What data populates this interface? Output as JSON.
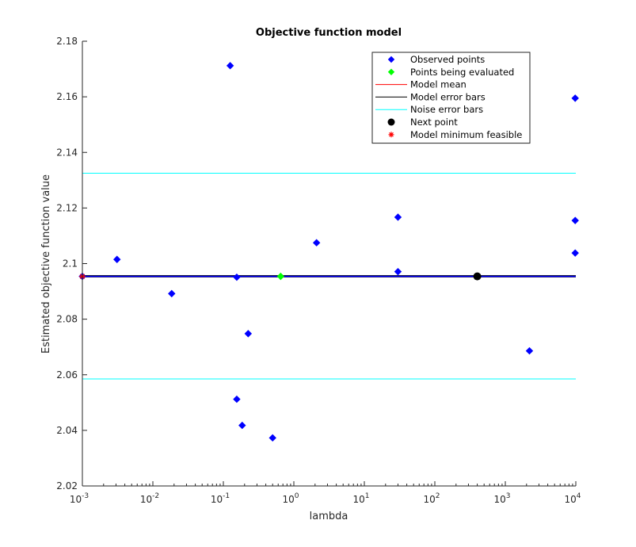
{
  "chart_data": {
    "type": "scatter",
    "title": "Objective function model",
    "xlabel": "lambda",
    "ylabel": "Estimated objective function value",
    "xscale": "log",
    "xlim": [
      0.001,
      10000
    ],
    "ylim": [
      2.02,
      2.18
    ],
    "x_ticks": [
      {
        "value": 0.001,
        "base": "10",
        "exp": "-3"
      },
      {
        "value": 0.01,
        "base": "10",
        "exp": "-2"
      },
      {
        "value": 0.1,
        "base": "10",
        "exp": "-1"
      },
      {
        "value": 1,
        "base": "10",
        "exp": "0"
      },
      {
        "value": 10,
        "base": "10",
        "exp": "1"
      },
      {
        "value": 100,
        "base": "10",
        "exp": "2"
      },
      {
        "value": 1000,
        "base": "10",
        "exp": "3"
      },
      {
        "value": 10000,
        "base": "10",
        "exp": "4"
      }
    ],
    "y_ticks": [
      "2.02",
      "2.04",
      "2.06",
      "2.08",
      "2.1",
      "2.12",
      "2.14",
      "2.16",
      "2.18"
    ],
    "grid": false,
    "legend_position": "top-right",
    "legend": [
      {
        "label": "Observed points",
        "marker": "diamond",
        "color": "#0000ff"
      },
      {
        "label": "Points being evaluated",
        "marker": "diamond",
        "color": "#00ff00"
      },
      {
        "label": "Model mean",
        "marker": "line",
        "color": "#ff0000"
      },
      {
        "label": "Model error bars",
        "marker": "line",
        "color": "#000000"
      },
      {
        "label": "Noise error bars",
        "marker": "line",
        "color": "#00ffff"
      },
      {
        "label": "Next point",
        "marker": "circle",
        "color": "#000000"
      },
      {
        "label": "Model minimum feasible",
        "marker": "asterisk",
        "color": "#ff0000"
      }
    ],
    "observed_points": [
      {
        "x": 0.001,
        "y": 2.0954
      },
      {
        "x": 0.0031,
        "y": 2.1015
      },
      {
        "x": 0.0185,
        "y": 2.0892
      },
      {
        "x": 0.125,
        "y": 2.1712
      },
      {
        "x": 0.155,
        "y": 2.0951
      },
      {
        "x": 0.155,
        "y": 2.0512
      },
      {
        "x": 0.185,
        "y": 2.0418
      },
      {
        "x": 0.225,
        "y": 2.0748
      },
      {
        "x": 0.5,
        "y": 2.0373
      },
      {
        "x": 2.1,
        "y": 2.1075
      },
      {
        "x": 30,
        "y": 2.1167
      },
      {
        "x": 30,
        "y": 2.0971
      },
      {
        "x": 2200,
        "y": 2.0686
      },
      {
        "x": 9800,
        "y": 2.1595
      },
      {
        "x": 9800,
        "y": 2.1155
      },
      {
        "x": 9800,
        "y": 2.1038
      }
    ],
    "points_being_evaluated": [
      {
        "x": 0.65,
        "y": 2.0954
      }
    ],
    "model_mean": 2.0954,
    "model_error_bars": [
      2.0952,
      2.0957
    ],
    "noise_error_bars": [
      2.0585,
      2.1325
    ],
    "next_point": {
      "x": 400,
      "y": 2.0954
    },
    "model_minimum_feasible": {
      "x": 0.001,
      "y": 2.0954
    },
    "colors": {
      "observed": "#0000ff",
      "evaluating": "#00ff00",
      "mean": "#ff0000",
      "error": "#000000",
      "noise": "#00ffff",
      "next": "#000000",
      "minimum": "#ff0000"
    }
  }
}
